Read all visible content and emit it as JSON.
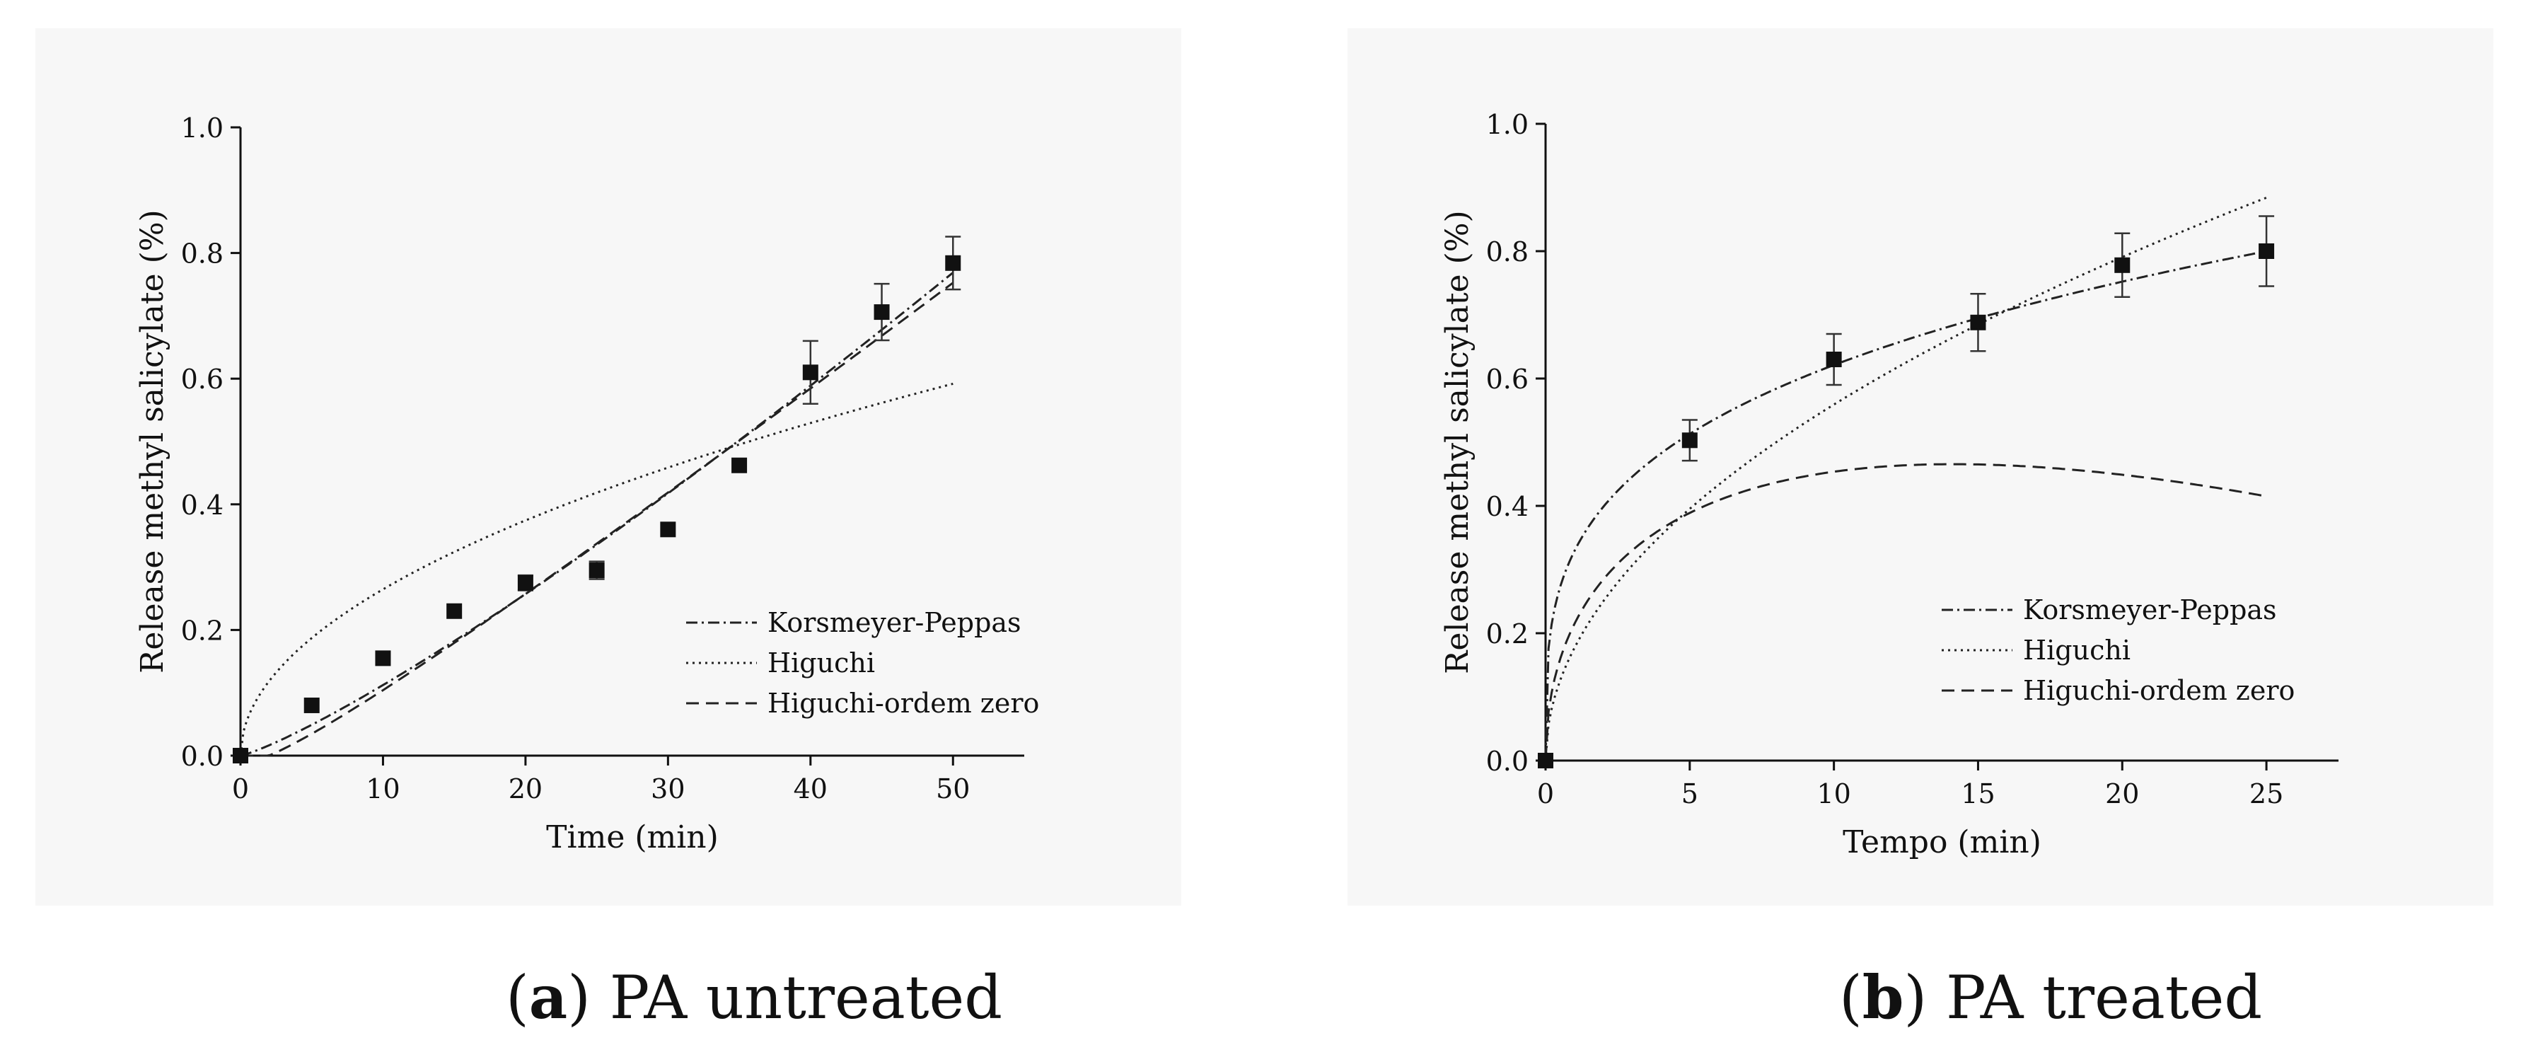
{
  "chart_data": [
    {
      "type": "scatter",
      "caption": {
        "letter": "a",
        "text": "PA untreated"
      },
      "xlabel": "Time (min)",
      "ylabel": "Release methyl salicylate (%)",
      "xlim": [
        0,
        55
      ],
      "ylim": [
        0,
        1.0
      ],
      "xticks": [
        0,
        10,
        20,
        30,
        40,
        50
      ],
      "yticks": [
        0.0,
        0.2,
        0.4,
        0.6,
        0.8,
        1.0
      ],
      "xtick_labels": [
        "0",
        "10",
        "20",
        "30",
        "40",
        "50"
      ],
      "ytick_labels": [
        "0.0",
        "0.2",
        "0.4",
        "0.6",
        "0.8",
        "1.0"
      ],
      "points": {
        "x": [
          0,
          5,
          10,
          15,
          20,
          25,
          30,
          35,
          40,
          45,
          50
        ],
        "y": [
          0.0,
          0.08,
          0.155,
          0.23,
          0.275,
          0.295,
          0.36,
          0.462,
          0.61,
          0.706,
          0.784
        ],
        "err": [
          0,
          0,
          0,
          0,
          0.012,
          0.014,
          0,
          0,
          0.05,
          0.045,
          0.042
        ]
      },
      "series": [
        {
          "name": "Korsmeyer-Peppas",
          "style": "dashdot",
          "model": "power",
          "a": 0.00717,
          "b": 1.195,
          "x_range": [
            0,
            50
          ]
        },
        {
          "name": "Higuchi",
          "style": "dotted",
          "model": "power",
          "a": 0.0837,
          "b": 0.5,
          "x_range": [
            0,
            50
          ]
        },
        {
          "name": "Higuchi-ordem zero",
          "style": "dashed",
          "model": "higuchi-zero",
          "k1": -0.0265,
          "k0": 0.0188,
          "x_range": [
            0,
            50
          ]
        }
      ],
      "legend_position": "bottom-right"
    },
    {
      "type": "scatter",
      "caption": {
        "letter": "b",
        "text": "PA treated"
      },
      "xlabel": "Tempo (min)",
      "ylabel": "Release methyl salicylate (%)",
      "xlim": [
        0,
        27.5
      ],
      "ylim": [
        0,
        1.0
      ],
      "xticks": [
        0,
        5,
        10,
        15,
        20,
        25
      ],
      "yticks": [
        0.0,
        0.2,
        0.4,
        0.6,
        0.8,
        1.0
      ],
      "xtick_labels": [
        "0",
        "5",
        "10",
        "15",
        "20",
        "25"
      ],
      "ytick_labels": [
        "0.0",
        "0.2",
        "0.4",
        "0.6",
        "0.8",
        "1.0"
      ],
      "points": {
        "x": [
          0,
          5,
          10,
          15,
          20,
          25
        ],
        "y": [
          0.0,
          0.503,
          0.63,
          0.688,
          0.778,
          0.8
        ],
        "err": [
          0,
          0.032,
          0.04,
          0.045,
          0.05,
          0.055
        ]
      },
      "series": [
        {
          "name": "Korsmeyer-Peppas",
          "style": "dashdot",
          "model": "power",
          "a": 0.329,
          "b": 0.276,
          "x_range": [
            0,
            25
          ]
        },
        {
          "name": "Higuchi",
          "style": "dotted",
          "model": "power",
          "a": 0.1768,
          "b": 0.5,
          "x_range": [
            0,
            25
          ]
        },
        {
          "name": "Higuchi-ordem zero",
          "style": "dashed",
          "model": "higuchi-zero",
          "k1": 0.2475,
          "k0": -0.0329,
          "x_range": [
            0,
            25
          ]
        }
      ],
      "legend_position": "bottom-right"
    }
  ]
}
